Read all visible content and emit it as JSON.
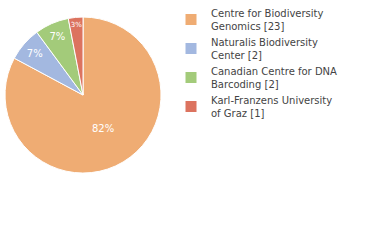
{
  "chart_data": {
    "type": "pie",
    "categories": [
      "Centre for Biodiversity Genomics [23]",
      "Naturalis Biodiversity Center [2]",
      "Canadian Centre for DNA Barcoding [2]",
      "Karl-Franzens University of Graz [1]"
    ],
    "values": [
      82,
      7,
      7,
      3
    ],
    "value_labels": [
      "82%",
      "7%",
      "7%",
      "3%"
    ],
    "colors": [
      "#efac73",
      "#a3b8e0",
      "#a3cb7a",
      "#dc735f"
    ],
    "data_labels": true,
    "legend": "right"
  }
}
